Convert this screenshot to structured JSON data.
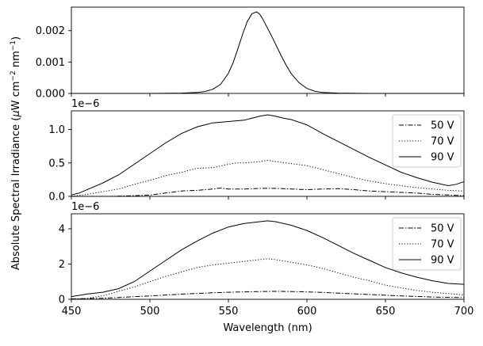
{
  "ylabel_parts": {
    "prefix": "Absolute Spectral Irradiance (",
    "mu": "μ",
    "mid": "W cm",
    "exp1": "−2",
    "mid2": " nm",
    "exp2": "−1",
    "suffix": ")"
  },
  "chart_data": [
    {
      "type": "line",
      "xlabel": "",
      "xlim": [
        450,
        700
      ],
      "ylim": [
        0,
        0.00275
      ],
      "yticks": [
        0.0,
        0.001,
        0.002
      ],
      "ytick_labels": [
        "0.000",
        "0.001",
        "0.002"
      ],
      "xticks": [
        450,
        500,
        550,
        600,
        650,
        700
      ],
      "xtick_labels": [
        "",
        "",
        "",
        "",
        "",
        ""
      ],
      "offset_text": "",
      "legend": false,
      "series": [
        {
          "style": "solid",
          "x": [
            450,
            500,
            520,
            530,
            535,
            540,
            545,
            550,
            553,
            556,
            559,
            562,
            565,
            568,
            570,
            572,
            575,
            578,
            581,
            584,
            587,
            590,
            595,
            600,
            605,
            610,
            620,
            640,
            700
          ],
          "y": [
            0.0,
            0.0,
            1e-05,
            3e-05,
            6e-05,
            0.00013,
            0.00029,
            0.00064,
            0.00098,
            0.00142,
            0.00188,
            0.00229,
            0.00254,
            0.0026,
            0.00252,
            0.00236,
            0.00207,
            0.00178,
            0.00147,
            0.00116,
            0.00088,
            0.00063,
            0.00034,
            0.00016,
            7e-05,
            3e-05,
            1e-05,
            0.0,
            0.0
          ]
        }
      ]
    },
    {
      "type": "line",
      "xlabel": "",
      "xlim": [
        450,
        700
      ],
      "ylim": [
        0,
        1.28e-06
      ],
      "yticks": [
        0,
        5e-07,
        1e-06
      ],
      "ytick_labels": [
        "0.0",
        "0.5",
        "1.0"
      ],
      "xticks": [
        450,
        500,
        550,
        600,
        650,
        700
      ],
      "xtick_labels": [
        "",
        "",
        "",
        "",
        "",
        ""
      ],
      "offset_text": "1e−6",
      "legend": true,
      "legend_position": "top-right",
      "series": [
        {
          "name": "50 V",
          "style": "dashdot",
          "x": [
            450,
            475,
            490,
            500,
            510,
            520,
            530,
            540,
            545,
            550,
            560,
            570,
            580,
            590,
            600,
            610,
            620,
            630,
            640,
            650,
            660,
            670,
            680,
            690,
            700
          ],
          "y": [
            0.0,
            0.0,
            1e-08,
            2e-08,
            5e-08,
            8e-08,
            9e-08,
            1.1e-07,
            1.25e-07,
            1.1e-07,
            1.1e-07,
            1.2e-07,
            1.2e-07,
            1.1e-07,
            1e-07,
            1.1e-07,
            1.15e-07,
            1e-07,
            8e-08,
            7e-08,
            6e-08,
            5e-08,
            3e-08,
            2e-08,
            1e-08
          ]
        },
        {
          "name": "70 V",
          "style": "dotted",
          "x": [
            450,
            460,
            470,
            480,
            490,
            500,
            510,
            520,
            530,
            540,
            550,
            555,
            560,
            570,
            575,
            580,
            590,
            600,
            610,
            620,
            630,
            640,
            650,
            660,
            670,
            680,
            690,
            700
          ],
          "y": [
            0.0,
            3e-08,
            7e-08,
            1.1e-07,
            1.8e-07,
            2.4e-07,
            3.1e-07,
            3.6e-07,
            4.2e-07,
            4.3e-07,
            4.8e-07,
            5e-07,
            5e-07,
            5.2e-07,
            5.4e-07,
            5.2e-07,
            4.9e-07,
            4.6e-07,
            4e-07,
            3.4e-07,
            2.8e-07,
            2.3e-07,
            1.9e-07,
            1.6e-07,
            1.3e-07,
            1.1e-07,
            9e-08,
            8e-08
          ]
        },
        {
          "name": "90 V",
          "style": "solid",
          "x": [
            450,
            455,
            460,
            470,
            480,
            490,
            500,
            510,
            520,
            530,
            540,
            550,
            560,
            565,
            570,
            575,
            580,
            585,
            590,
            600,
            610,
            620,
            630,
            640,
            650,
            660,
            670,
            680,
            690,
            695,
            700
          ],
          "y": [
            2e-08,
            5e-08,
            1e-07,
            2e-07,
            3.2e-07,
            4.8e-07,
            6.4e-07,
            8e-07,
            9.4e-07,
            1.04e-06,
            1.1e-06,
            1.12e-06,
            1.14e-06,
            1.17e-06,
            1.2e-06,
            1.22e-06,
            1.2e-06,
            1.17e-06,
            1.15e-06,
            1.07e-06,
            9.4e-07,
            8.2e-07,
            7e-07,
            5.8e-07,
            4.7e-07,
            3.6e-07,
            2.8e-07,
            2.1e-07,
            1.6e-07,
            1.8e-07,
            2.2e-07
          ]
        }
      ]
    },
    {
      "type": "line",
      "xlabel": "Wavelength (nm)",
      "xlim": [
        450,
        700
      ],
      "ylim": [
        0,
        4.85e-06
      ],
      "yticks": [
        0,
        2e-06,
        4e-06
      ],
      "ytick_labels": [
        "0",
        "2",
        "4"
      ],
      "xticks": [
        450,
        500,
        550,
        600,
        650,
        700
      ],
      "xtick_labels": [
        "450",
        "500",
        "550",
        "600",
        "650",
        "700"
      ],
      "offset_text": "1e−6",
      "legend": true,
      "legend_position": "top-right",
      "series": [
        {
          "name": "50 V",
          "style": "dashdot",
          "x": [
            450,
            460,
            470,
            480,
            490,
            500,
            510,
            520,
            530,
            540,
            550,
            560,
            570,
            580,
            590,
            600,
            610,
            620,
            630,
            640,
            650,
            660,
            670,
            680,
            690,
            700
          ],
          "y": [
            2e-08,
            4e-08,
            6e-08,
            1e-07,
            1.5e-07,
            1.9e-07,
            2.4e-07,
            2.9e-07,
            3.3e-07,
            3.7e-07,
            4e-07,
            4.2e-07,
            4.4e-07,
            4.5e-07,
            4.4e-07,
            4.2e-07,
            3.9e-07,
            3.5e-07,
            3.1e-07,
            2.7e-07,
            2.3e-07,
            1.9e-07,
            1.6e-07,
            1.3e-07,
            1.1e-07,
            1e-07
          ]
        },
        {
          "name": "70 V",
          "style": "dotted",
          "x": [
            450,
            460,
            470,
            480,
            490,
            500,
            510,
            520,
            530,
            540,
            550,
            560,
            570,
            575,
            580,
            590,
            600,
            610,
            620,
            630,
            640,
            650,
            660,
            670,
            680,
            690,
            700
          ],
          "y": [
            0.0,
            5e-08,
            2e-07,
            4.5e-07,
            7e-07,
            1e-06,
            1.3e-06,
            1.55e-06,
            1.8e-06,
            1.95e-06,
            2.05e-06,
            2.15e-06,
            2.25e-06,
            2.3e-06,
            2.25e-06,
            2.1e-06,
            1.95e-06,
            1.75e-06,
            1.5e-06,
            1.25e-06,
            1.05e-06,
            8e-07,
            6.5e-07,
            5e-07,
            4e-07,
            3.2e-07,
            2.5e-07
          ]
        },
        {
          "name": "90 V",
          "style": "solid",
          "x": [
            450,
            460,
            470,
            480,
            490,
            500,
            510,
            520,
            530,
            540,
            550,
            560,
            570,
            575,
            580,
            590,
            600,
            610,
            620,
            630,
            640,
            650,
            660,
            670,
            680,
            690,
            700
          ],
          "y": [
            1.5e-07,
            3e-07,
            4e-07,
            6e-07,
            1e-06,
            1.6e-06,
            2.2e-06,
            2.8e-06,
            3.3e-06,
            3.75e-06,
            4.1e-06,
            4.3e-06,
            4.4e-06,
            4.45e-06,
            4.4e-06,
            4.2e-06,
            3.9e-06,
            3.5e-06,
            3.05e-06,
            2.6e-06,
            2.2e-06,
            1.8e-06,
            1.5e-06,
            1.25e-06,
            1.05e-06,
            9e-07,
            8.5e-07
          ]
        }
      ]
    }
  ]
}
